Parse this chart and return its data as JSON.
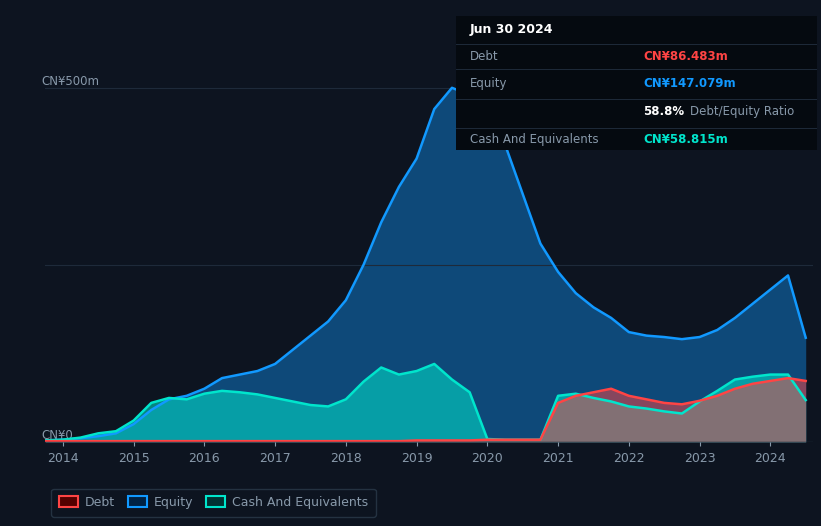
{
  "bg_color": "#0d1420",
  "plot_bg_color": "#0d1420",
  "grid_color": "#1e2a3a",
  "text_color": "#8899aa",
  "white_color": "#ffffff",
  "debt_color": "#ff4444",
  "equity_color": "#1199ff",
  "cash_color": "#00e5cc",
  "table_bg": "#050a10",
  "y_label_500": "CN¥500m",
  "y_label_0": "CN¥0",
  "x_ticks": [
    2014,
    2015,
    2016,
    2017,
    2018,
    2019,
    2020,
    2021,
    2022,
    2023,
    2024
  ],
  "info": {
    "date": "Jun 30 2024",
    "debt_label": "Debt",
    "debt_value": "CN¥86.483m",
    "equity_label": "Equity",
    "equity_value": "CN¥147.079m",
    "ratio_value": "58.8%",
    "ratio_label": "Debt/Equity Ratio",
    "cash_label": "Cash And Equivalents",
    "cash_value": "CN¥58.815m"
  },
  "years": [
    2013.75,
    2014.0,
    2014.25,
    2014.5,
    2014.75,
    2015.0,
    2015.25,
    2015.5,
    2015.75,
    2016.0,
    2016.25,
    2016.5,
    2016.75,
    2017.0,
    2017.25,
    2017.5,
    2017.75,
    2018.0,
    2018.25,
    2018.5,
    2018.75,
    2019.0,
    2019.25,
    2019.5,
    2019.75,
    2020.0,
    2020.25,
    2020.5,
    2020.75,
    2021.0,
    2021.25,
    2021.5,
    2021.75,
    2022.0,
    2022.25,
    2022.5,
    2022.75,
    2023.0,
    2023.25,
    2023.5,
    2023.75,
    2024.0,
    2024.25,
    2024.5
  ],
  "equity": [
    2,
    3,
    5,
    8,
    12,
    25,
    45,
    60,
    65,
    75,
    90,
    95,
    100,
    110,
    130,
    150,
    170,
    200,
    250,
    310,
    360,
    400,
    470,
    500,
    490,
    470,
    420,
    350,
    280,
    240,
    210,
    190,
    175,
    155,
    150,
    148,
    145,
    148,
    158,
    175,
    195,
    215,
    235,
    147
  ],
  "debt": [
    1,
    1,
    1,
    1,
    1,
    1,
    1,
    1,
    1,
    1,
    1,
    1,
    1,
    1,
    1,
    1,
    1,
    1,
    1,
    1,
    1,
    2,
    2,
    2,
    2,
    3,
    3,
    3,
    3,
    55,
    65,
    70,
    75,
    65,
    60,
    55,
    53,
    58,
    65,
    75,
    82,
    86,
    90,
    86
  ],
  "cash": [
    2,
    3,
    6,
    12,
    15,
    30,
    55,
    62,
    60,
    68,
    72,
    70,
    67,
    62,
    57,
    52,
    50,
    60,
    85,
    105,
    95,
    100,
    110,
    88,
    70,
    4,
    3,
    3,
    3,
    65,
    68,
    62,
    57,
    50,
    47,
    43,
    40,
    57,
    72,
    88,
    92,
    95,
    95,
    59
  ]
}
